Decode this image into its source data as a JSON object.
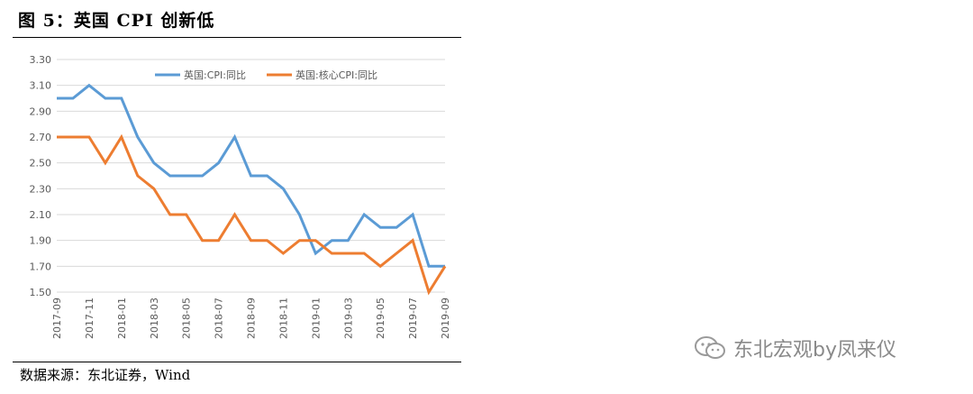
{
  "figure_title": "图 5：英国 CPI 创新低",
  "source_text": "数据来源：东北证券，Wind",
  "watermark_text": "东北宏观by凤来仪",
  "watermark_icon": "wechat-icon",
  "colors": {
    "cpi": "#5B9BD5",
    "core": "#ED7D31",
    "grid": "#d9d9d9",
    "axis_text": "#595959"
  },
  "chart_data": {
    "type": "line",
    "x": [
      "2017-09",
      "2017-10",
      "2017-11",
      "2017-12",
      "2018-01",
      "2018-02",
      "2018-03",
      "2018-04",
      "2018-05",
      "2018-06",
      "2018-07",
      "2018-08",
      "2018-09",
      "2018-10",
      "2018-11",
      "2018-12",
      "2019-01",
      "2019-02",
      "2019-03",
      "2019-04",
      "2019-05",
      "2019-06",
      "2019-07",
      "2019-08",
      "2019-09"
    ],
    "xtick_labels": [
      "2017-09",
      "2017-11",
      "2018-01",
      "2018-03",
      "2018-05",
      "2018-07",
      "2018-09",
      "2018-11",
      "2019-01",
      "2019-03",
      "2019-05",
      "2019-07",
      "2019-09"
    ],
    "ytick_labels": [
      "1.50",
      "1.70",
      "1.90",
      "2.10",
      "2.30",
      "2.50",
      "2.70",
      "2.90",
      "3.10",
      "3.30"
    ],
    "ylim": [
      1.5,
      3.3
    ],
    "grid": true,
    "legend_position": "top-right",
    "series": [
      {
        "name": "英国:CPI:同比",
        "color": "#5B9BD5",
        "values": [
          3.0,
          3.0,
          3.1,
          3.0,
          3.0,
          2.7,
          2.5,
          2.4,
          2.4,
          2.4,
          2.5,
          2.7,
          2.4,
          2.4,
          2.3,
          2.1,
          1.8,
          1.9,
          1.9,
          2.1,
          2.0,
          2.0,
          2.1,
          1.7,
          1.7
        ]
      },
      {
        "name": "英国:核心CPI:同比",
        "color": "#ED7D31",
        "values": [
          2.7,
          2.7,
          2.7,
          2.5,
          2.7,
          2.4,
          2.3,
          2.1,
          2.1,
          1.9,
          1.9,
          2.1,
          1.9,
          1.9,
          1.8,
          1.9,
          1.9,
          1.8,
          1.8,
          1.8,
          1.7,
          1.8,
          1.9,
          1.5,
          1.7
        ]
      }
    ]
  }
}
